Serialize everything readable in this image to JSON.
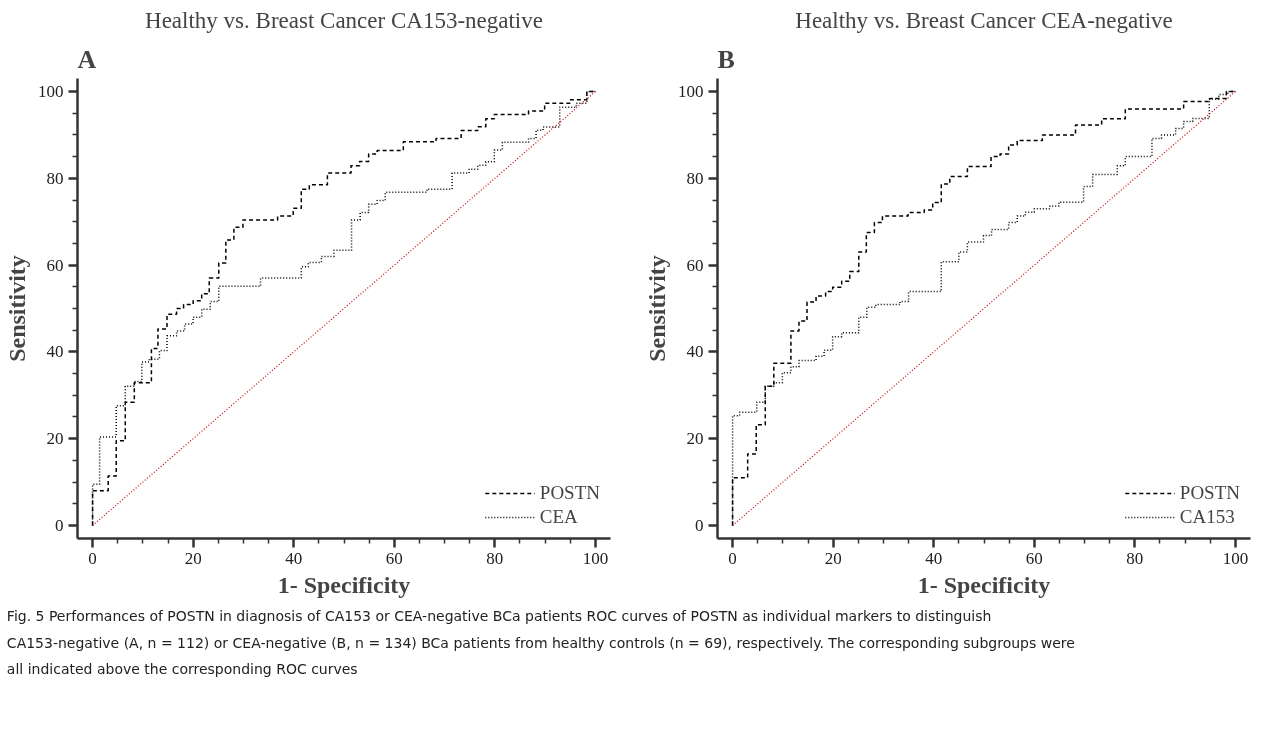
{
  "chart_data": [
    {
      "type": "step",
      "title": "Healthy vs. Breast Cancer CA153-negative",
      "xlabel": "1- Specificity",
      "ylabel": "Sensitivity",
      "annotations": [
        "A"
      ],
      "xlim": [
        -3,
        103
      ],
      "ylim": [
        -3,
        103
      ],
      "xticks": [
        0,
        {
          "value": 5,
          "label": null
        },
        {
          "value": 10,
          "label": null
        },
        {
          "value": 15,
          "label": null
        },
        20,
        {
          "value": 25,
          "label": null
        },
        {
          "value": 30,
          "label": null
        },
        {
          "value": 35,
          "label": null
        },
        40,
        {
          "value": 45,
          "label": null
        },
        {
          "value": 50,
          "label": null
        },
        {
          "value": 55,
          "label": null
        },
        60,
        {
          "value": 65,
          "label": null
        },
        {
          "value": 70,
          "label": null
        },
        {
          "value": 75,
          "label": null
        },
        80,
        {
          "value": 85,
          "label": null
        },
        {
          "value": 90,
          "label": null
        },
        {
          "value": 95,
          "label": null
        },
        100
      ],
      "yticks": [
        0,
        {
          "value": 5,
          "label": null
        },
        {
          "value": 10,
          "label": null
        },
        {
          "value": 15,
          "label": null
        },
        20,
        {
          "value": 25,
          "label": null
        },
        {
          "value": 30,
          "label": null
        },
        {
          "value": 35,
          "label": null
        },
        40,
        {
          "value": 45,
          "label": null
        },
        {
          "value": 50,
          "label": null
        },
        {
          "value": 55,
          "label": null
        },
        60,
        {
          "value": 65,
          "label": null
        },
        {
          "value": 70,
          "label": null
        },
        {
          "value": 75,
          "label": null
        },
        80,
        {
          "value": 85,
          "label": null
        },
        {
          "value": 90,
          "label": null
        },
        {
          "value": 95,
          "label": null
        },
        100
      ],
      "grid": false,
      "legend": "bottom right",
      "series": [
        {
          "name": "POSTN",
          "color": "#000000",
          "line_style": "dashed",
          "x": [
            0,
            0,
            3.1,
            4.7,
            6.5,
            8.3,
            11.7,
            13,
            14.8,
            16.7,
            18.1,
            20,
            21.7,
            23.2,
            25.1,
            26.5,
            28.1,
            29.9,
            36.8,
            39.9,
            41.5,
            43.1,
            46.7,
            51.4,
            53.1,
            54.9,
            56.6,
            61.8,
            68.3,
            73.3,
            76.6,
            78.2,
            79.9,
            86.7,
            89.9,
            94.9,
            98.3,
            100
          ],
          "values": [
            0,
            8,
            11.4,
            19.5,
            28.4,
            32.9,
            40.8,
            45.3,
            48.7,
            50,
            50.9,
            51.8,
            53.4,
            57,
            60.5,
            65.8,
            68.7,
            70.4,
            71.3,
            73.1,
            77.5,
            78.5,
            81.2,
            82.9,
            83.9,
            85.6,
            86.4,
            88.4,
            89.2,
            91,
            91.9,
            93.7,
            94.7,
            95.5,
            97.3,
            98.1,
            100,
            100
          ]
        },
        {
          "name": "CEA",
          "color": "#000000",
          "line_style": "dotted",
          "x": [
            0,
            0,
            1.4,
            4.7,
            6.5,
            8.3,
            9.8,
            11.3,
            13.3,
            14.8,
            16.7,
            18.3,
            20,
            21.7,
            23.4,
            25.1,
            33.4,
            41.5,
            42.9,
            45.5,
            48,
            51.5,
            53.2,
            54.9,
            56.6,
            58.2,
            66.5,
            71.5,
            74.9,
            76.6,
            78.2,
            79.9,
            81.5,
            86.7,
            88.2,
            89.6,
            92.9,
            96.2,
            98.3,
            100
          ],
          "values": [
            0,
            9.5,
            20.4,
            27.6,
            32.1,
            33.2,
            37.7,
            38.3,
            40.3,
            43.7,
            44.8,
            46.4,
            48,
            49.8,
            51.6,
            55.1,
            57,
            59.6,
            60.6,
            62,
            63.4,
            70.4,
            72.1,
            74,
            74.9,
            76.8,
            77.5,
            81.2,
            82.1,
            83,
            83.8,
            86.5,
            88.3,
            89.2,
            91.1,
            91.8,
            96.4,
            97.3,
            100,
            100
          ]
        },
        {
          "type": "line",
          "color": "#cc0000",
          "line_style": "dotted",
          "x": [
            0,
            100
          ],
          "values": [
            0,
            100
          ]
        }
      ]
    },
    {
      "type": "step",
      "title": "Healthy vs. Breast Cancer CEA-negative",
      "xlabel": "1- Specificity",
      "ylabel": "Sensitivity",
      "annotations": [
        "B"
      ],
      "xlim": [
        -3,
        103
      ],
      "ylim": [
        -3,
        103
      ],
      "xticks": [
        0,
        {
          "value": 5,
          "label": null
        },
        {
          "value": 10,
          "label": null
        },
        {
          "value": 15,
          "label": null
        },
        20,
        {
          "value": 25,
          "label": null
        },
        {
          "value": 30,
          "label": null
        },
        {
          "value": 35,
          "label": null
        },
        40,
        {
          "value": 45,
          "label": null
        },
        {
          "value": 50,
          "label": null
        },
        {
          "value": 55,
          "label": null
        },
        60,
        {
          "value": 65,
          "label": null
        },
        {
          "value": 70,
          "label": null
        },
        {
          "value": 75,
          "label": null
        },
        80,
        {
          "value": 85,
          "label": null
        },
        {
          "value": 90,
          "label": null
        },
        {
          "value": 95,
          "label": null
        },
        100
      ],
      "yticks": [
        0,
        {
          "value": 5,
          "label": null
        },
        {
          "value": 10,
          "label": null
        },
        {
          "value": 15,
          "label": null
        },
        20,
        {
          "value": 25,
          "label": null
        },
        {
          "value": 30,
          "label": null
        },
        {
          "value": 35,
          "label": null
        },
        40,
        {
          "value": 45,
          "label": null
        },
        {
          "value": 50,
          "label": null
        },
        {
          "value": 55,
          "label": null
        },
        60,
        {
          "value": 65,
          "label": null
        },
        {
          "value": 70,
          "label": null
        },
        {
          "value": 75,
          "label": null
        },
        80,
        {
          "value": 85,
          "label": null
        },
        {
          "value": 90,
          "label": null
        },
        {
          "value": 95,
          "label": null
        },
        100
      ],
      "grid": false,
      "legend": "bottom right",
      "series": [
        {
          "name": "POSTN",
          "color": "#000000",
          "line_style": "dashed",
          "x": [
            0,
            0,
            3,
            4.7,
            6.5,
            8.2,
            11.6,
            13.2,
            14.8,
            16.6,
            18.5,
            19.9,
            21.7,
            23.3,
            25.1,
            26.6,
            28.2,
            29.8,
            34.9,
            38.1,
            39.8,
            41.5,
            43.2,
            46.7,
            51.4,
            53.2,
            54.9,
            56.6,
            61.6,
            68.2,
            73.4,
            78.1,
            89.7,
            94.9,
            98.2,
            100
          ],
          "values": [
            0,
            11,
            16.5,
            23.2,
            32.1,
            37.4,
            44.8,
            47.1,
            51.5,
            52.9,
            53.9,
            54.9,
            56.3,
            58.5,
            63,
            67.5,
            69.8,
            71.3,
            72.1,
            72.7,
            74.4,
            78.7,
            80.4,
            82.7,
            85,
            85.6,
            87.7,
            88.7,
            90,
            92.3,
            93.7,
            96,
            97.7,
            98.4,
            100,
            100
          ]
        },
        {
          "name": "CA153",
          "color": "#000000",
          "line_style": "dotted",
          "x": [
            0,
            0,
            1.4,
            4.8,
            6.5,
            8.2,
            9.9,
            11.6,
            13.2,
            16.6,
            18.2,
            19.9,
            21.7,
            25.1,
            26.7,
            28.5,
            33.3,
            35,
            41.5,
            45,
            46.7,
            49.9,
            51.5,
            54.9,
            56.6,
            58.2,
            60,
            63.1,
            64.9,
            69.8,
            71.6,
            76.5,
            78.1,
            83.4,
            85.3,
            88.1,
            89.7,
            91.5,
            94.8,
            96.7,
            98.5,
            100
          ],
          "values": [
            0,
            25.3,
            26.1,
            28.4,
            32.1,
            32.9,
            35.2,
            36.6,
            38,
            39,
            40.4,
            43.5,
            44.4,
            48,
            50.3,
            50.9,
            51.6,
            53.9,
            60.8,
            63,
            65.3,
            66.8,
            68.2,
            69.8,
            71.3,
            72.2,
            73,
            73.6,
            74.5,
            78.1,
            80.9,
            82.9,
            85,
            89.2,
            90,
            91.5,
            93.1,
            93.8,
            98.3,
            99.3,
            100,
            100
          ]
        },
        {
          "type": "line",
          "color": "#cc0000",
          "line_style": "dotted",
          "x": [
            0,
            100
          ],
          "values": [
            0,
            100
          ]
        }
      ]
    },
    {
      "type": "other",
      "annotations": [
        "Fig. 5 Performances of POSTN in diagnosis of CA153 or CEA-negative BCa patients ROC curves of POSTN as individual markers to distinguish CA153-negative (A, n = 112) or CEA-negative (B, n = 134) BCa patients from healthy controls (n = 69), respectively. The corresponding subgroups were all indicated above the corresponding ROC curves"
      ]
    }
  ]
}
